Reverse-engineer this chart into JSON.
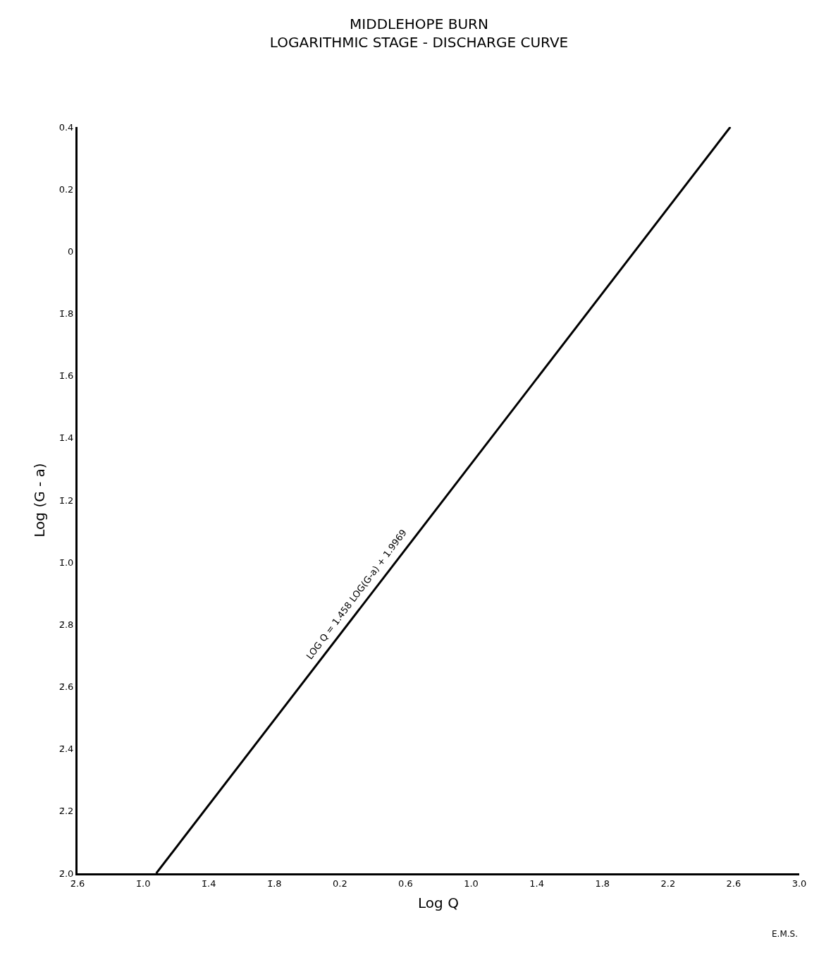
{
  "chart_data": {
    "type": "line",
    "title": "MIDDLEHOPE BURN",
    "subtitle": "LOGARITHMIC STAGE - DISCHARGE CURVE",
    "xlabel": "Log Q",
    "ylabel": "Log (G - a)",
    "x": [
      -0.92,
      2.58
    ],
    "series": [
      {
        "color": "#000000",
        "values": [
          -2.0,
          0.4
        ]
      }
    ],
    "xlim": [
      -1.4,
      3.0
    ],
    "ylim": [
      -2.0,
      0.4
    ],
    "xticks": [
      {
        "value": -1.4,
        "label": "2̄.6"
      },
      {
        "value": -1.0,
        "label": "1̄.0"
      },
      {
        "value": -0.6,
        "label": "1̄.4"
      },
      {
        "value": -0.2,
        "label": "1̄.8"
      },
      0.2,
      0.6,
      {
        "value": 1.0,
        "label": "1.0"
      },
      1.4,
      1.8,
      2.2,
      2.6,
      {
        "value": 3.0,
        "label": "3.0"
      }
    ],
    "yticks": [
      {
        "value": -2.0,
        "label": "2̄.0"
      },
      {
        "value": -1.8,
        "label": "2̄.2"
      },
      {
        "value": -1.6,
        "label": "2̄.4"
      },
      {
        "value": -1.4,
        "label": "2̄.6"
      },
      {
        "value": -1.2,
        "label": "2̄.8"
      },
      {
        "value": -1.0,
        "label": "1̄.0"
      },
      {
        "value": -0.8,
        "label": "1̄.2"
      },
      {
        "value": -0.6,
        "label": "1̄.4"
      },
      {
        "value": -0.4,
        "label": "1̄.6"
      },
      {
        "value": -0.2,
        "label": "1̄.8"
      },
      0,
      0.2,
      0.4
    ],
    "annotations": [
      {
        "text": "LOG Q = 1.458 LOG(G-a) + 1.9969",
        "x": 0.36,
        "y": -1.12
      },
      "E.M.S."
    ],
    "marker": "none",
    "line_style": "solid"
  }
}
